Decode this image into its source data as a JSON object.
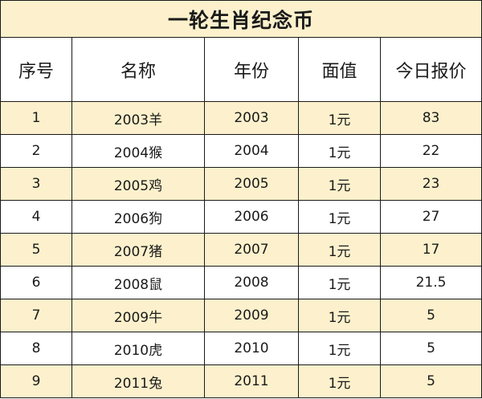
{
  "title": "一轮生肖纪念币",
  "columns": [
    "序号",
    "名称",
    "年份",
    "面值",
    "今日报价"
  ],
  "colors": {
    "band": "#fcf1cc",
    "plain": "#ffffff",
    "border": "#1a1a1a",
    "text": "#1a1a1a"
  },
  "rows": [
    [
      "1",
      "2003羊",
      "2003",
      "1元",
      "83"
    ],
    [
      "2",
      "2004猴",
      "2004",
      "1元",
      "22"
    ],
    [
      "3",
      "2005鸡",
      "2005",
      "1元",
      "23"
    ],
    [
      "4",
      "2006狗",
      "2006",
      "1元",
      "27"
    ],
    [
      "5",
      "2007猪",
      "2007",
      "1元",
      "17"
    ],
    [
      "6",
      "2008鼠",
      "2008",
      "1元",
      "21.5"
    ],
    [
      "7",
      "2009牛",
      "2009",
      "1元",
      "5"
    ],
    [
      "8",
      "2010虎",
      "2010",
      "1元",
      "5"
    ],
    [
      "9",
      "2011兔",
      "2011",
      "1元",
      "5"
    ]
  ]
}
